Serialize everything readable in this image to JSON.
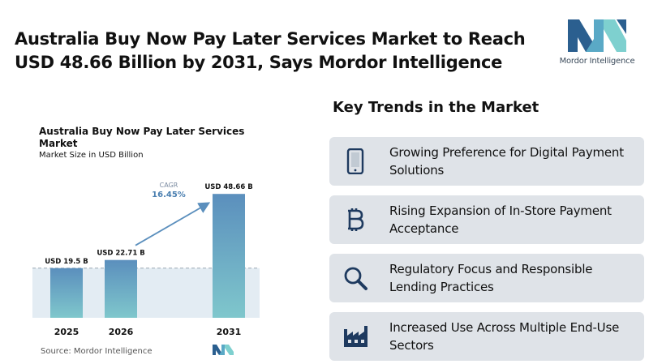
{
  "headline": "Australia Buy Now Pay Later Services Market to Reach USD 48.66 Billion by 2031, Says Mordor Intelligence",
  "logo_text": "Mordor Intelligence",
  "chart_title": "Australia Buy Now Pay Later Services Market",
  "chart_subtitle": "Market Size in USD Billion",
  "source": "Source:  Mordor Intelligence",
  "trends_title": "Key Trends in the Market",
  "trends": [
    {
      "label": "Growing Preference for Digital Payment Solutions",
      "icon": "smartphone-icon"
    },
    {
      "label": "Rising Expansion of In-Store Payment Acceptance",
      "icon": "bitcoin-icon"
    },
    {
      "label": "Regulatory Focus and Responsible Lending Practices",
      "icon": "magnifier-icon"
    },
    {
      "label": "Increased Use Across Multiple End-Use Sectors",
      "icon": "factory-icon"
    }
  ],
  "colors": {
    "bar_top": "#5b8fbd",
    "bar_bottom": "#7fc7cc",
    "band": "#e3ecf3",
    "arrow": "#5b8fbd",
    "icon": "#1e3a5f"
  },
  "chart_data": {
    "type": "bar",
    "title": "Australia Buy Now Pay Later Services Market",
    "ylabel": "Market Size in USD Billion",
    "categories": [
      "2025",
      "2026",
      "2031"
    ],
    "values": [
      19.5,
      22.71,
      48.66
    ],
    "value_labels": [
      "USD 19.5 B",
      "USD 22.71 B",
      "USD 48.66 B"
    ],
    "ylim": [
      0,
      50
    ],
    "cagr_label": "CAGR",
    "cagr_value": "16.45%",
    "grid": false
  }
}
